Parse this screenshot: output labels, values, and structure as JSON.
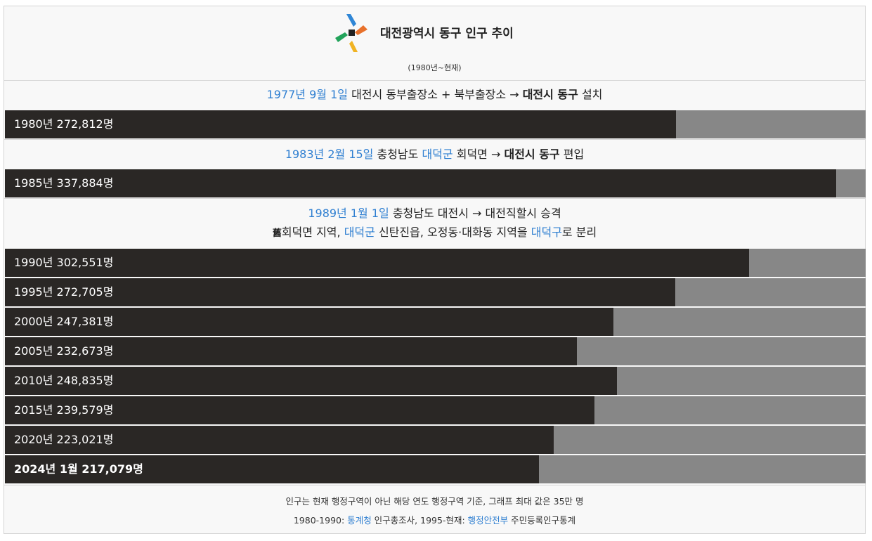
{
  "header": {
    "title": "대전광역시 동구 인구 추이",
    "subtitle": "(1980년~현재)"
  },
  "events": [
    {
      "lines": [
        [
          {
            "text": "1977년 9월 1일",
            "style": "blue"
          },
          {
            "text": " 대전시 동부출장소 + 북부출장소 → ",
            "style": ""
          },
          {
            "text": "대전시 동구",
            "style": "b"
          },
          {
            "text": " 설치",
            "style": ""
          }
        ]
      ]
    },
    {
      "lines": [
        [
          {
            "text": "1983년 2월 15일",
            "style": "blue"
          },
          {
            "text": " 충청남도 ",
            "style": ""
          },
          {
            "text": "대덕군",
            "style": "blue"
          },
          {
            "text": " 회덕면 → ",
            "style": ""
          },
          {
            "text": "대전시 동구",
            "style": "b"
          },
          {
            "text": " 편입",
            "style": ""
          }
        ]
      ]
    },
    {
      "lines": [
        [
          {
            "text": "1989년 1월 1일",
            "style": "blue"
          },
          {
            "text": " 충청남도 대전시 → 대전직할시 승격",
            "style": ""
          }
        ],
        [
          {
            "text": "舊",
            "style": "sym"
          },
          {
            "text": "회덕면 지역, ",
            "style": ""
          },
          {
            "text": "대덕군",
            "style": "blue"
          },
          {
            "text": " 신탄진읍, 오정동·대화동 지역을 ",
            "style": ""
          },
          {
            "text": "대덕구",
            "style": "blue"
          },
          {
            "text": "로 분리",
            "style": ""
          }
        ]
      ]
    }
  ],
  "chart_data": {
    "type": "bar",
    "orientation": "horizontal",
    "title": "대전광역시 동구 인구 추이",
    "subtitle": "(1980년~현재)",
    "xlim": [
      0,
      350000
    ],
    "categories": [
      "1980년",
      "1985년",
      "1990년",
      "1995년",
      "2000년",
      "2005년",
      "2010년",
      "2015년",
      "2020년",
      "2024년 1월"
    ],
    "values": [
      272812,
      337884,
      302551,
      272705,
      247381,
      232673,
      248835,
      239579,
      223021,
      217079
    ],
    "labels": [
      "1980년 272,812명",
      "1985년 337,884명",
      "1990년 302,551명",
      "1995년 272,705명",
      "2000년 247,381명",
      "2005년 232,673명",
      "2010년 248,835명",
      "2015년 239,579명",
      "2020년 223,021명",
      "2024년 1월 217,079명"
    ],
    "bold_index": 9,
    "colors": {
      "bar": "#2a2725",
      "track": "#878787"
    }
  },
  "footnotes": [
    [
      {
        "text": "인구는 현재 행정구역이 아닌 해당 연도 행정구역 기준, 그래프 최대 값은 35만 명",
        "style": ""
      }
    ],
    [
      {
        "text": "1980-1990: ",
        "style": ""
      },
      {
        "text": "통계청",
        "style": "blue"
      },
      {
        "text": " 인구총조사, 1995-현재: ",
        "style": ""
      },
      {
        "text": "행정안전부",
        "style": "blue"
      },
      {
        "text": " 주민등록인구통계",
        "style": ""
      }
    ]
  ]
}
